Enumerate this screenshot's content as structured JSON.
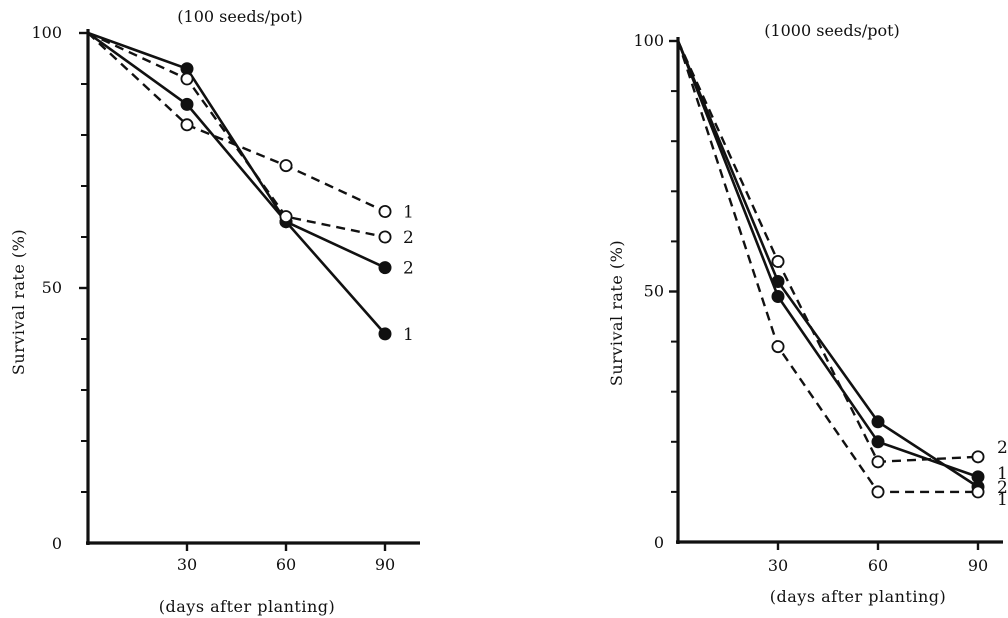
{
  "colors": {
    "ink": "#111111",
    "background": "#ffffff"
  },
  "chart_data": [
    {
      "type": "line",
      "subtitle": "(100 seeds/pot)",
      "xlabel": "(days after planting)",
      "ylabel": "Survival rate (%)",
      "xlim": [
        0,
        90
      ],
      "ylim": [
        0,
        100
      ],
      "x_ticks": [
        30,
        60,
        90
      ],
      "y_tick_labels": [
        {
          "value": 0,
          "label": "0"
        },
        {
          "value": 50,
          "label": "50"
        },
        {
          "value": 100,
          "label": "100"
        }
      ],
      "y_minor_ticks": [
        10,
        20,
        30,
        40,
        60,
        70,
        80,
        90
      ],
      "grid": false,
      "legend": "none",
      "series": [
        {
          "label": "1",
          "marker": "filled",
          "line": "solid",
          "x": [
            0,
            30,
            60,
            90
          ],
          "y": [
            100,
            86,
            63,
            41
          ]
        },
        {
          "label": "2",
          "marker": "filled",
          "line": "solid",
          "x": [
            0,
            30,
            60,
            90
          ],
          "y": [
            100,
            93,
            63,
            54
          ]
        },
        {
          "label": "1",
          "marker": "open",
          "line": "dashed",
          "x": [
            0,
            30,
            60,
            90
          ],
          "y": [
            100,
            82,
            74,
            65
          ]
        },
        {
          "label": "2",
          "marker": "open",
          "line": "dashed",
          "x": [
            0,
            30,
            60,
            90
          ],
          "y": [
            100,
            91,
            64,
            60
          ]
        }
      ]
    },
    {
      "type": "line",
      "subtitle": "(1000 seeds/pot)",
      "xlabel": "(days after planting)",
      "ylabel": "Survival rate (%)",
      "xlim": [
        0,
        90
      ],
      "ylim": [
        0,
        100
      ],
      "x_ticks": [
        30,
        60,
        90
      ],
      "y_tick_labels": [
        {
          "value": 0,
          "label": "0"
        },
        {
          "value": 50,
          "label": "50"
        },
        {
          "value": 100,
          "label": "100"
        }
      ],
      "y_minor_ticks": [
        10,
        20,
        30,
        40,
        60,
        70,
        80,
        90
      ],
      "grid": false,
      "legend": "none",
      "series": [
        {
          "label": "1",
          "marker": "filled",
          "line": "solid",
          "x": [
            0,
            30,
            60,
            90
          ],
          "y": [
            100,
            49,
            20,
            13
          ]
        },
        {
          "label": "2",
          "marker": "filled",
          "line": "solid",
          "x": [
            0,
            30,
            60,
            90
          ],
          "y": [
            100,
            52,
            24,
            11
          ]
        },
        {
          "label": "2",
          "marker": "open",
          "line": "dashed",
          "x": [
            0,
            30,
            60,
            90
          ],
          "y": [
            100,
            56,
            16,
            17
          ]
        },
        {
          "label": "1",
          "marker": "open",
          "line": "dashed",
          "x": [
            0,
            30,
            60,
            90
          ],
          "y": [
            100,
            39,
            10,
            10
          ]
        }
      ]
    }
  ]
}
